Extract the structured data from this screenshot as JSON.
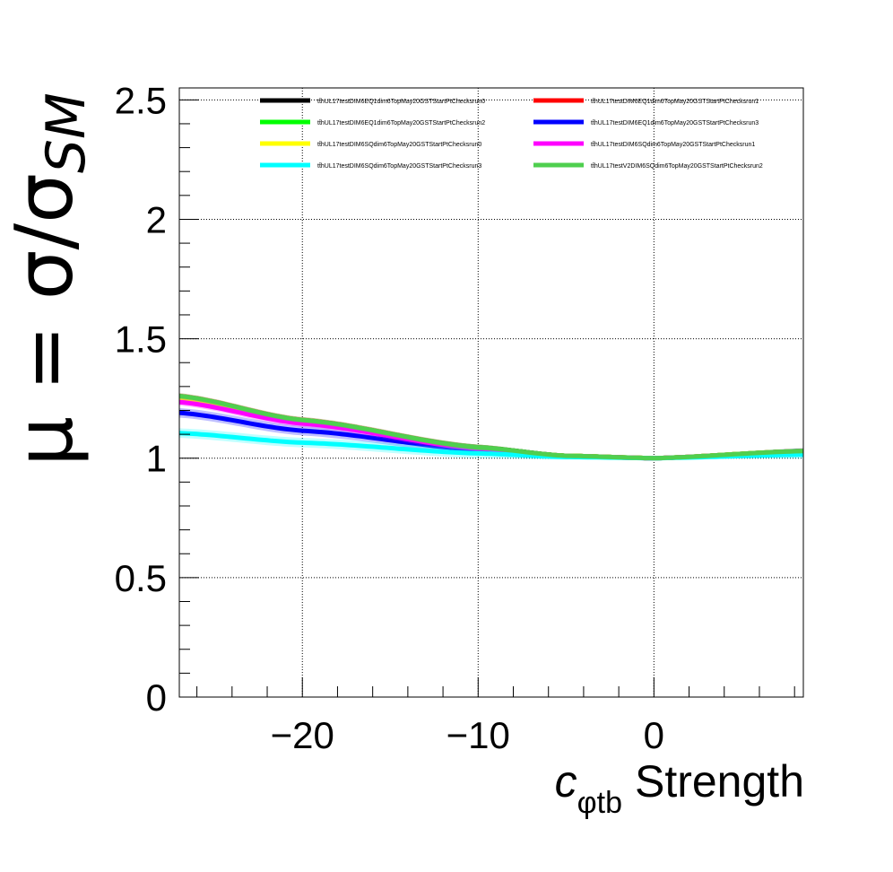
{
  "chart_data": {
    "type": "line",
    "title": "",
    "xlabel": {
      "symbol": "c",
      "subscript": "φtb",
      "suffix": "Strength"
    },
    "ylabel": {
      "main": "μ = σ/σ",
      "subscript": "SM"
    },
    "xlim": [
      -27,
      8.5
    ],
    "ylim": [
      0,
      2.55
    ],
    "x_ticks": [
      {
        "value": -20,
        "label": "−20"
      },
      {
        "value": -10,
        "label": "−10"
      },
      {
        "value": 0,
        "label": "0"
      }
    ],
    "y_ticks": [
      {
        "value": 0,
        "label": "0"
      },
      {
        "value": 0.5,
        "label": "0.5"
      },
      {
        "value": 1,
        "label": "1"
      },
      {
        "value": 1.5,
        "label": "1.5"
      },
      {
        "value": 2,
        "label": "2"
      },
      {
        "value": 2.5,
        "label": "2.5"
      }
    ],
    "grid": true,
    "legend_position": "top",
    "series": [
      {
        "name": "tt̄hUL17testDIM6EQ1dim6TopMay20GSTStartPtChecksrun0",
        "color": "#000000",
        "fill": "#000000",
        "x": [
          -27,
          -20,
          -10,
          -5,
          0,
          8.5
        ],
        "y": [
          1.255,
          1.155,
          1.045,
          1.01,
          1.0,
          1.03
        ],
        "band": 0.012
      },
      {
        "name": "tt̄hUL17testDIM6EQ1dim6TopMay20GSTStartPtChecksrun1",
        "color": "#ff0000",
        "fill": "#ff0000",
        "x": [
          -27,
          -20,
          -10,
          -5,
          0,
          8.5
        ],
        "y": [
          1.26,
          1.16,
          1.045,
          1.01,
          1.0,
          1.03
        ],
        "band": 0.012
      },
      {
        "name": "tt̄hUL17testDIM6EQ1dim6TopMay20GSTStartPtChecksrun2",
        "color": "#00ff00",
        "fill": "#00ff00",
        "x": [
          -27,
          -20,
          -10,
          -5,
          0,
          8.5
        ],
        "y": [
          1.255,
          1.155,
          1.045,
          1.01,
          1.0,
          1.03
        ],
        "band": 0.012
      },
      {
        "name": "tt̄hUL17testDIM6EQ1dim6TopMay20GSTStartPtChecksrun3",
        "color": "#0000ff",
        "fill": "#0000ff",
        "x": [
          -27,
          -20,
          -10,
          -5,
          0,
          8.5
        ],
        "y": [
          1.19,
          1.115,
          1.035,
          1.008,
          1.0,
          1.025
        ],
        "band": 0.02
      },
      {
        "name": "tt̄hUL17testDIM6SQdim6TopMay20GSTStartPtChecksrun0",
        "color": "#ffff00",
        "fill": "#ffff00",
        "x": [
          -27,
          -20,
          -10,
          -5,
          0,
          8.5
        ],
        "y": [
          1.25,
          1.15,
          1.043,
          1.01,
          1.0,
          1.03
        ],
        "band": 0.012
      },
      {
        "name": "tt̄hUL17testDIM6SQdim6TopMay20GSTStartPtChecksrun1",
        "color": "#ff00ff",
        "fill": "#ff00ff",
        "x": [
          -27,
          -20,
          -10,
          -5,
          0,
          8.5
        ],
        "y": [
          1.235,
          1.145,
          1.04,
          1.009,
          1.0,
          1.028
        ],
        "band": 0.015
      },
      {
        "name": "tt̄hUL17testDIM6SQdim6TopMay20GSTStartPtChecksrun3",
        "color": "#00ffff",
        "fill": "#00ffff",
        "x": [
          -27,
          -20,
          -10,
          -5,
          0,
          8.5
        ],
        "y": [
          1.105,
          1.065,
          1.02,
          1.005,
          1.0,
          1.015
        ],
        "band": 0.02
      },
      {
        "name": "tt̄hUL17testV2DIM6SQdim6TopMay20GSTStartPtChecksrun2",
        "color": "#4fcf4f",
        "fill": "#4fcf4f",
        "x": [
          -27,
          -20,
          -10,
          -5,
          0,
          8.5
        ],
        "y": [
          1.26,
          1.16,
          1.045,
          1.01,
          1.0,
          1.03
        ],
        "band": 0.012
      }
    ]
  }
}
